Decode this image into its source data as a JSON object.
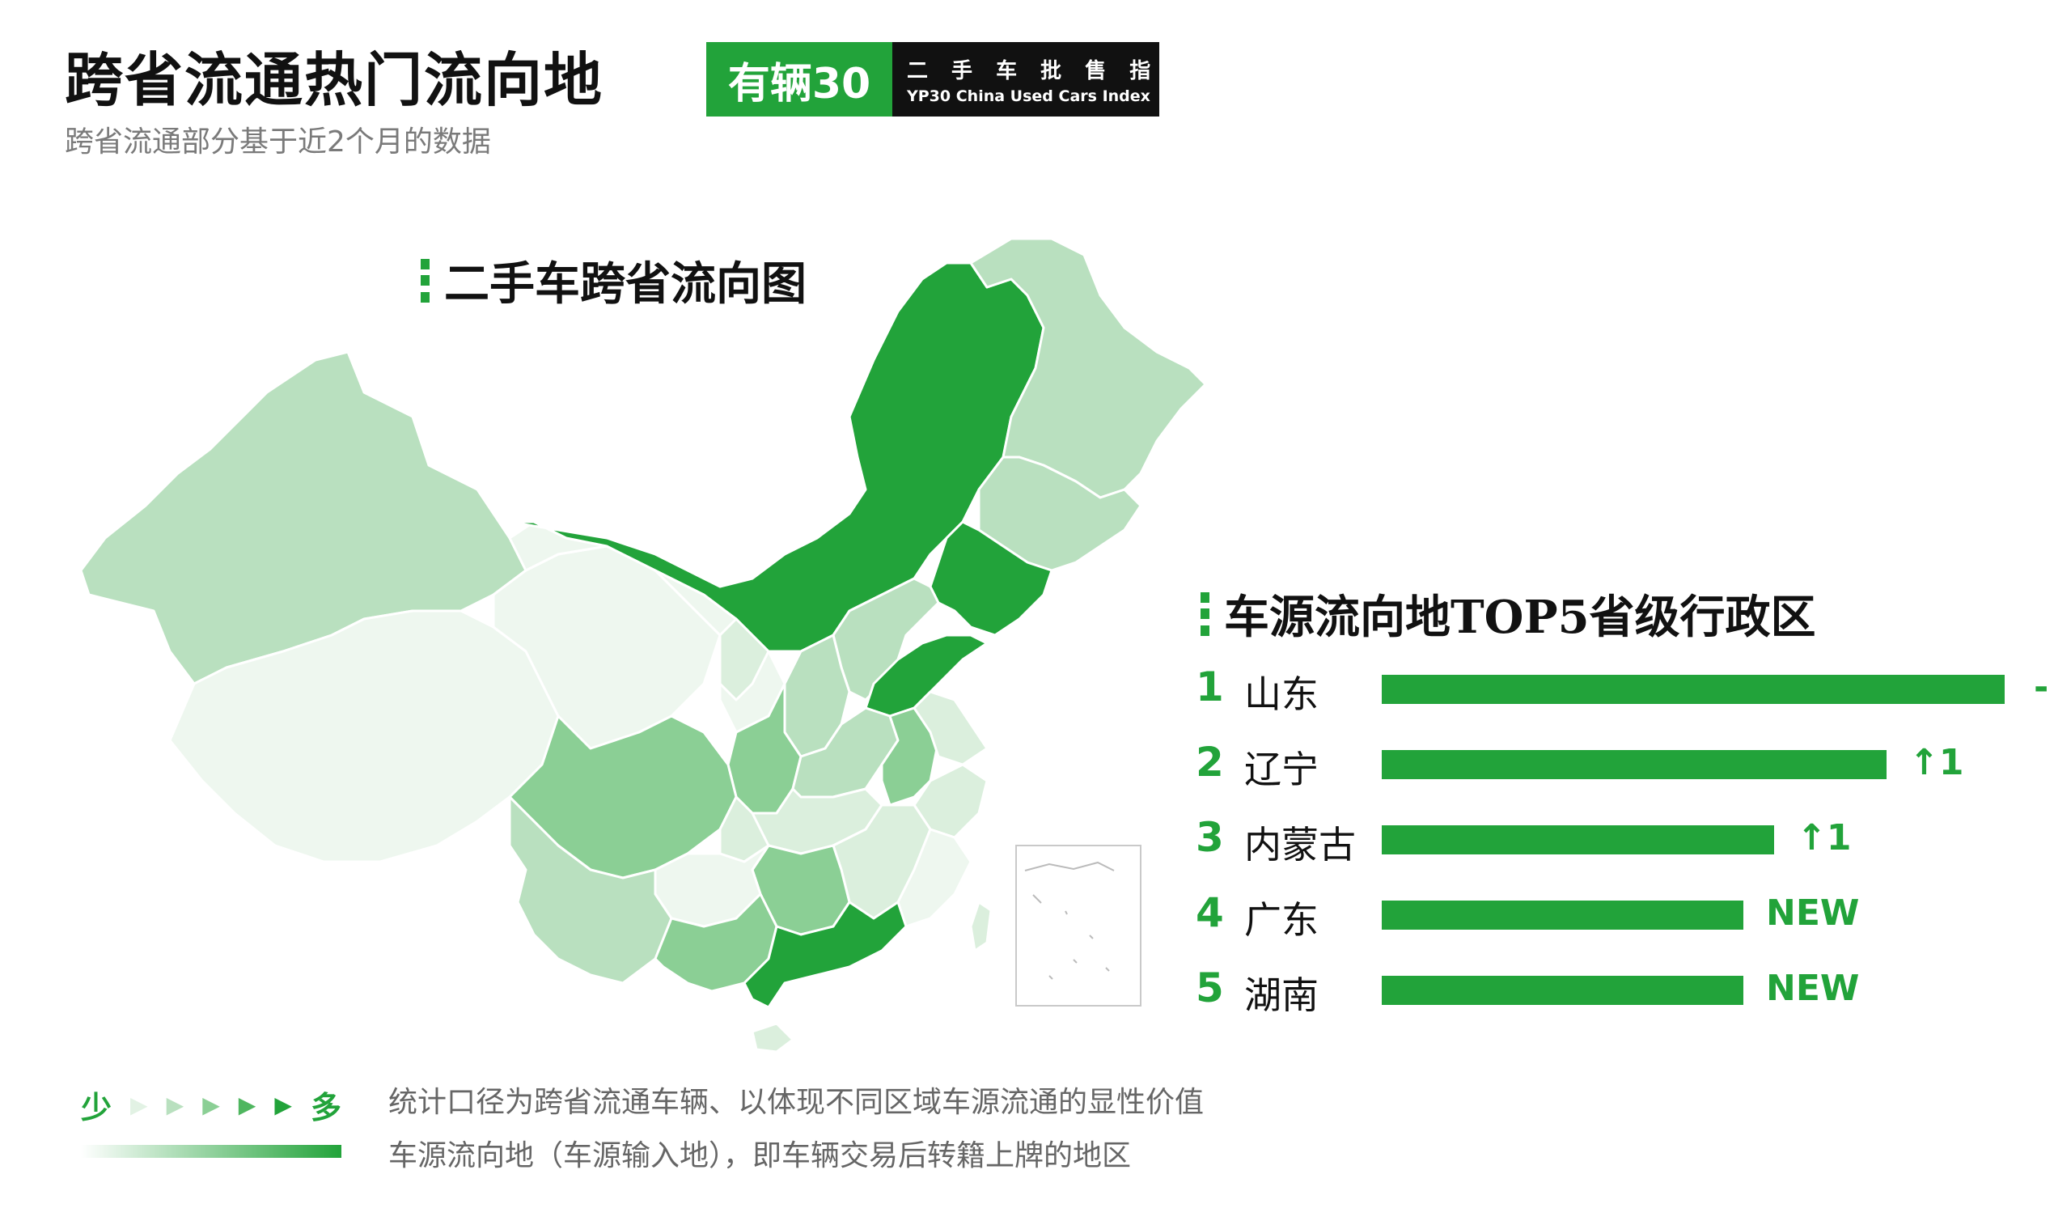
{
  "header": {
    "title": "跨省流通热门流向地",
    "subtitle": "跨省流通部分基于近2个月的数据"
  },
  "logo": {
    "brand": "有辆30",
    "cn_text": "二 手 车 批 售 指 数",
    "en_text": "YP30 China Used Cars Index"
  },
  "map": {
    "heading": "二手车跨省流向图"
  },
  "colors": {
    "accent": "#22a33a",
    "level_1": "#eef7ef",
    "level_2": "#dbefdd",
    "level_3": "#b9e0bf",
    "level_4": "#8bcf95",
    "level_5": "#22a33a",
    "sea": "#ffffff"
  },
  "chart_data": {
    "type": "bar",
    "orientation": "horizontal",
    "title": "车源流向地TOP5省级行政区",
    "categories": [
      "山东",
      "辽宁",
      "内蒙古",
      "广东",
      "湖南"
    ],
    "ranks": [
      "1",
      "2",
      "3",
      "4",
      "5"
    ],
    "values": [
      100,
      81,
      63,
      58,
      58
    ],
    "changes": [
      "-",
      "↑1",
      "↑1",
      "NEW",
      "NEW"
    ]
  },
  "legend": {
    "low": "少",
    "high": "多",
    "arrows": [
      "▶",
      "▶",
      "▶",
      "▶",
      "▶"
    ]
  },
  "footnote": {
    "line1": "统计口径为跨省流通车辆、以体现不同区域车源流通的显性价值",
    "line2": "车源流向地（车源输入地），即车辆交易后转籍上牌的地区"
  }
}
